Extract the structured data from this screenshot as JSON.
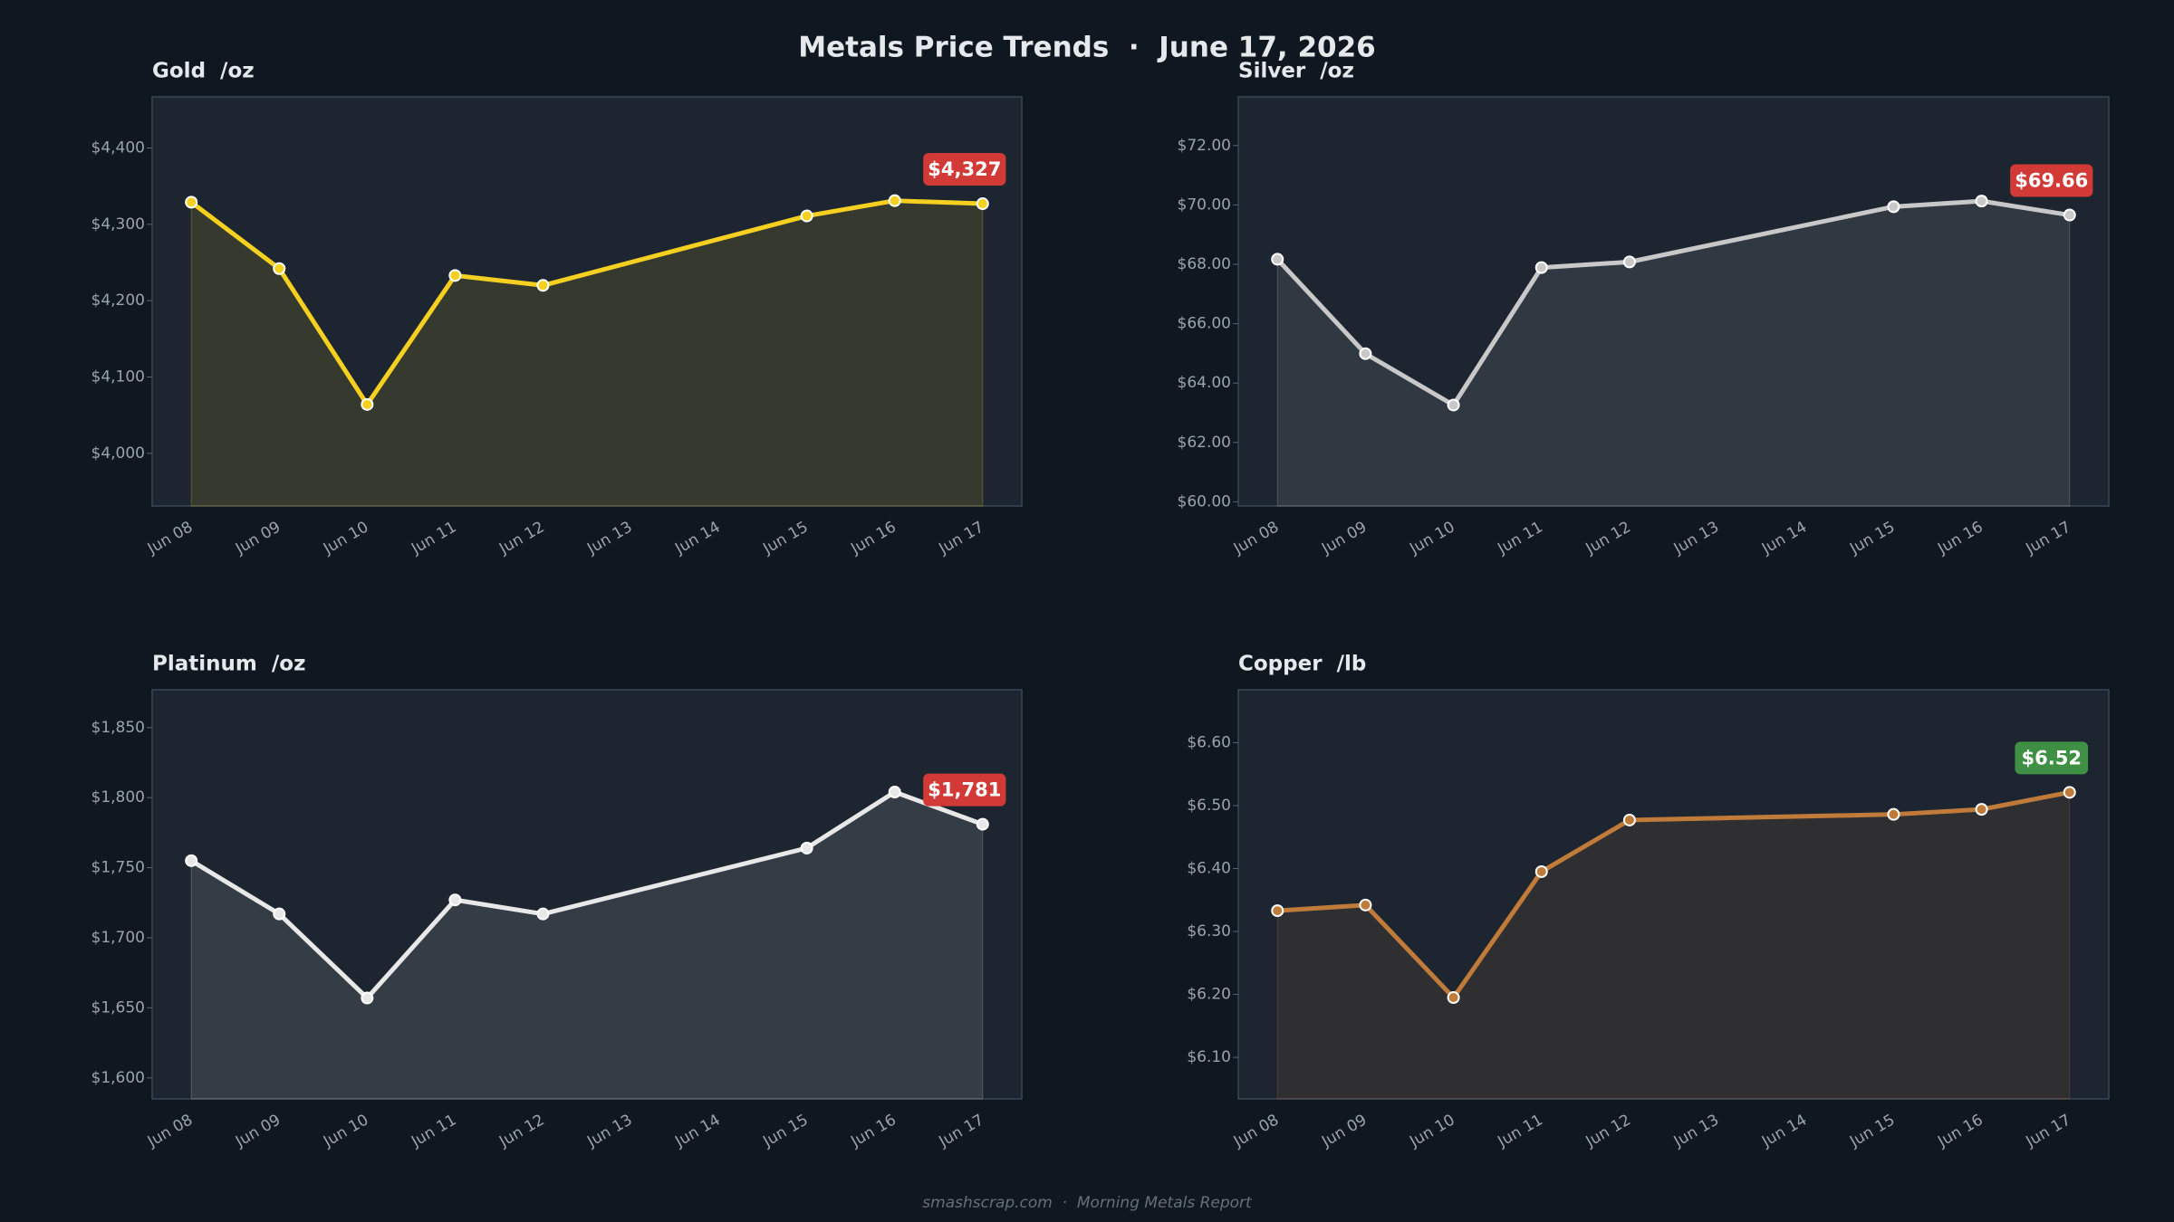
{
  "title": "Metals Price Trends  ·  June 17, 2026",
  "footer": "smashscrap.com  ·  Morning Metals Report",
  "chart_data": [
    {
      "type": "line",
      "title": "Gold  /oz",
      "categories": [
        "Jun 08",
        "Jun 09",
        "Jun 10",
        "Jun 11",
        "Jun 12",
        "Jun 13",
        "Jun 14",
        "Jun 15",
        "Jun 16",
        "Jun 17"
      ],
      "x": [
        "Jun 08",
        "Jun 09",
        "Jun 10",
        "Jun 11",
        "Jun 12",
        "Jun 15",
        "Jun 16",
        "Jun 17"
      ],
      "values": [
        4329,
        4242,
        4064,
        4233,
        4220,
        4311,
        4331,
        4327
      ],
      "value_labels": [
        null,
        null,
        null,
        null,
        null,
        null,
        null,
        "$4,327"
      ],
      "color": "#f5d020",
      "badge_color": "#d13a36",
      "ylim": [
        3931,
        4467
      ],
      "yticks": [
        {
          "value": 4000,
          "label": "$4,000"
        },
        {
          "value": 4100,
          "label": "$4,100"
        },
        {
          "value": 4200,
          "label": "$4,200"
        },
        {
          "value": 4300,
          "label": "$4,300"
        },
        {
          "value": 4400,
          "label": "$4,400"
        }
      ]
    },
    {
      "type": "line",
      "title": "Silver  /oz",
      "categories": [
        "Jun 08",
        "Jun 09",
        "Jun 10",
        "Jun 11",
        "Jun 12",
        "Jun 13",
        "Jun 14",
        "Jun 15",
        "Jun 16",
        "Jun 17"
      ],
      "x": [
        "Jun 08",
        "Jun 09",
        "Jun 10",
        "Jun 11",
        "Jun 12",
        "Jun 15",
        "Jun 16",
        "Jun 17"
      ],
      "values": [
        68.17,
        64.99,
        63.26,
        67.89,
        68.08,
        69.94,
        70.13,
        69.66
      ],
      "value_labels": [
        null,
        null,
        null,
        null,
        null,
        null,
        null,
        "$69.66"
      ],
      "color": "#c8c8c8",
      "badge_color": "#d13a36",
      "ylim": [
        59.86,
        73.64
      ],
      "yticks": [
        {
          "value": 60,
          "label": "$60.00"
        },
        {
          "value": 62,
          "label": "$62.00"
        },
        {
          "value": 64,
          "label": "$64.00"
        },
        {
          "value": 66,
          "label": "$66.00"
        },
        {
          "value": 68,
          "label": "$68.00"
        },
        {
          "value": 70,
          "label": "$70.00"
        },
        {
          "value": 72,
          "label": "$72.00"
        }
      ]
    },
    {
      "type": "line",
      "title": "Platinum  /oz",
      "categories": [
        "Jun 08",
        "Jun 09",
        "Jun 10",
        "Jun 11",
        "Jun 12",
        "Jun 13",
        "Jun 14",
        "Jun 15",
        "Jun 16",
        "Jun 17"
      ],
      "x": [
        "Jun 08",
        "Jun 09",
        "Jun 10",
        "Jun 11",
        "Jun 12",
        "Jun 15",
        "Jun 16",
        "Jun 17"
      ],
      "values": [
        1755,
        1717,
        1657,
        1727,
        1717,
        1764,
        1804,
        1781
      ],
      "value_labels": [
        null,
        null,
        null,
        null,
        null,
        null,
        null,
        "$1,781"
      ],
      "color": "#e8e8e8",
      "badge_color": "#d13a36",
      "ylim": [
        1585,
        1877
      ],
      "yticks": [
        {
          "value": 1600,
          "label": "$1,600"
        },
        {
          "value": 1650,
          "label": "$1,650"
        },
        {
          "value": 1700,
          "label": "$1,700"
        },
        {
          "value": 1750,
          "label": "$1,750"
        },
        {
          "value": 1800,
          "label": "$1,800"
        },
        {
          "value": 1850,
          "label": "$1,850"
        }
      ]
    },
    {
      "type": "line",
      "title": "Copper  /lb",
      "categories": [
        "Jun 08",
        "Jun 09",
        "Jun 10",
        "Jun 11",
        "Jun 12",
        "Jun 13",
        "Jun 14",
        "Jun 15",
        "Jun 16",
        "Jun 17"
      ],
      "x": [
        "Jun 08",
        "Jun 09",
        "Jun 10",
        "Jun 11",
        "Jun 12",
        "Jun 15",
        "Jun 16",
        "Jun 17"
      ],
      "values": [
        6.333,
        6.342,
        6.195,
        6.395,
        6.477,
        6.486,
        6.494,
        6.521
      ],
      "value_labels": [
        null,
        null,
        null,
        null,
        null,
        null,
        null,
        "$6.52"
      ],
      "color": "#c07a3a",
      "badge_color": "#3f8f45",
      "ylim": [
        6.034,
        6.684
      ],
      "yticks": [
        {
          "value": 6.1,
          "label": "$6.10"
        },
        {
          "value": 6.2,
          "label": "$6.20"
        },
        {
          "value": 6.3,
          "label": "$6.30"
        },
        {
          "value": 6.4,
          "label": "$6.40"
        },
        {
          "value": 6.5,
          "label": "$6.50"
        },
        {
          "value": 6.6,
          "label": "$6.60"
        }
      ]
    }
  ]
}
